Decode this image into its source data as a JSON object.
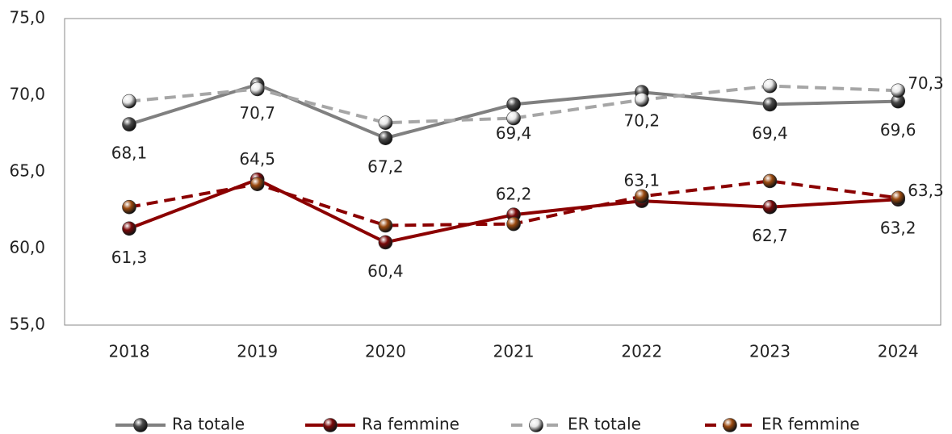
{
  "chart_data": {
    "type": "line",
    "categories": [
      "2018",
      "2019",
      "2020",
      "2021",
      "2022",
      "2023",
      "2024"
    ],
    "ylim": [
      55,
      75
    ],
    "yticks": [
      {
        "value": 55,
        "label": "55,0"
      },
      {
        "value": 60,
        "label": "60,0"
      },
      {
        "value": 65,
        "label": "65,0"
      },
      {
        "value": 70,
        "label": "70,0"
      },
      {
        "value": 75,
        "label": "75,0"
      }
    ],
    "grid": false,
    "legend": "bottom",
    "series": [
      {
        "name": "Ra totale",
        "color": "#808080",
        "marker_color": "#4a4a4a",
        "dashed": false,
        "values": [
          68.1,
          70.7,
          67.2,
          69.4,
          70.2,
          69.4,
          69.6
        ],
        "value_labels": [
          "68,1",
          "70,7",
          "67,2",
          "69,4",
          "70,2",
          "69,4",
          "69,6"
        ]
      },
      {
        "name": "Ra femmine",
        "color": "#8b0000",
        "marker_color": "#7a0a0a",
        "dashed": false,
        "values": [
          61.3,
          64.5,
          60.4,
          62.2,
          63.1,
          62.7,
          63.2
        ],
        "value_labels": [
          "61,3",
          "64,5",
          "60,4",
          "62,2",
          "63,1",
          "62,7",
          "63,2"
        ]
      },
      {
        "name": "ER totale",
        "color": "#a6a6a6",
        "marker_color": "#e8e8e8",
        "dashed": true,
        "values": [
          69.6,
          70.4,
          68.2,
          68.5,
          69.7,
          70.6,
          70.3
        ],
        "value_labels": [
          null,
          null,
          null,
          null,
          null,
          null,
          "70,3"
        ]
      },
      {
        "name": "ER femmine",
        "color": "#8b0000",
        "marker_color": "#9a4a10",
        "dashed": true,
        "values": [
          62.7,
          64.2,
          61.5,
          61.6,
          63.4,
          64.4,
          63.3
        ],
        "value_labels": [
          null,
          null,
          null,
          null,
          null,
          null,
          "63,3"
        ]
      }
    ]
  }
}
